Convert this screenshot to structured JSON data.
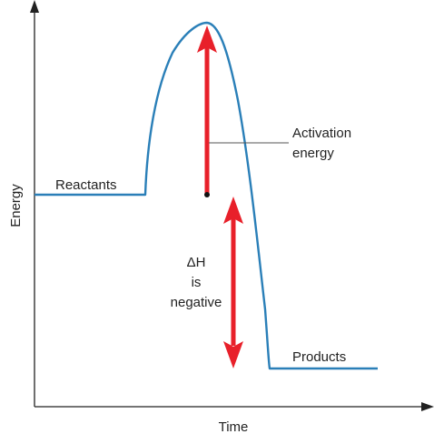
{
  "axes": {
    "y_label": "Energy",
    "x_label": "Time"
  },
  "labels": {
    "reactants": "Reactants",
    "products": "Products",
    "activation_line1": "Activation",
    "activation_line2": "energy",
    "delta_h_line1": "ΔH",
    "delta_h_line2": "is",
    "delta_h_line3": "negative"
  },
  "colors": {
    "curve": "#2a7fb8",
    "arrow": "#e8202a",
    "axis": "#222222"
  }
}
